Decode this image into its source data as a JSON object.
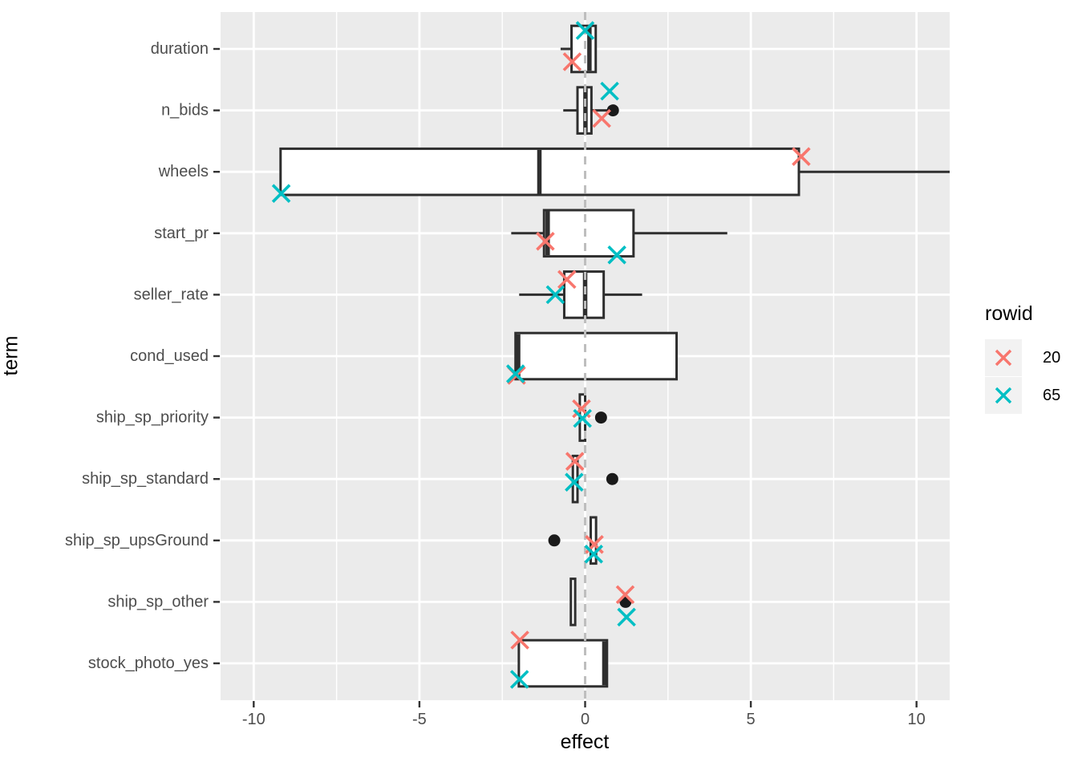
{
  "colors": {
    "rowid_20": "#F8766D",
    "rowid_65": "#00BFC4",
    "box_stroke": "#2E2E2E",
    "box_fill": "#FFFFFF",
    "outlier_dot": "#1A1A1A",
    "panel_background": "#EBEBEB",
    "gridline": "#FFFFFF",
    "reference_line": "#BEBEBE",
    "tick_label": "#4D4D4D",
    "tick_mark": "#333333"
  },
  "chart_data": {
    "type": "boxplot-horizontal",
    "title": "",
    "xlabel": "effect",
    "ylabel": "term",
    "xlim": [
      -11,
      11
    ],
    "x_ticks": [
      -10,
      -5,
      0,
      5,
      10
    ],
    "x_tick_labels": [
      "-10",
      "-5",
      "0",
      "5",
      "10"
    ],
    "x_minor_ticks": [
      -7.5,
      -2.5,
      2.5,
      7.5
    ],
    "grid": true,
    "reference_line": {
      "x": 0,
      "style": "dashed"
    },
    "legend": {
      "title": "rowid",
      "position": "right",
      "entries": [
        {
          "label": "20",
          "color_key": "rowid_20",
          "marker": "x"
        },
        {
          "label": "65",
          "color_key": "rowid_65",
          "marker": "x"
        }
      ]
    },
    "categories": [
      "duration",
      "n_bids",
      "wheels",
      "start_pr",
      "seller_rate",
      "cond_used",
      "ship_sp_priority",
      "ship_sp_standard",
      "ship_sp_upsGround",
      "ship_sp_other",
      "stock_photo_yes"
    ],
    "rows": [
      {
        "term": "duration",
        "box": {
          "q1": -0.41,
          "median": 0.13,
          "q3": 0.32,
          "whisker_low": -0.74,
          "whisker_high": null
        },
        "outliers": [],
        "points": [
          {
            "rowid": "20",
            "x": -0.39,
            "dy": 16
          },
          {
            "rowid": "65",
            "x": 0.0,
            "dy": -23
          }
        ]
      },
      {
        "term": "n_bids",
        "box": {
          "q1": -0.23,
          "median": 0.01,
          "q3": 0.19,
          "whisker_low": -0.66,
          "whisker_high": 0.7
        },
        "outliers": [
          0.84
        ],
        "points": [
          {
            "rowid": "20",
            "x": 0.5,
            "dy": 10
          },
          {
            "rowid": "65",
            "x": 0.74,
            "dy": -24
          }
        ]
      },
      {
        "term": "wheels",
        "box": {
          "q1": -9.19,
          "median": -1.38,
          "q3": 6.45,
          "whisker_low": null,
          "whisker_high": 11.0
        },
        "outliers": [],
        "points": [
          {
            "rowid": "20",
            "x": 6.52,
            "dy": -19
          },
          {
            "rowid": "65",
            "x": -9.17,
            "dy": 27
          }
        ]
      },
      {
        "term": "start_pr",
        "box": {
          "q1": -1.24,
          "median": -1.13,
          "q3": 1.46,
          "whisker_low": -2.23,
          "whisker_high": 4.29
        },
        "outliers": [],
        "points": [
          {
            "rowid": "20",
            "x": -1.2,
            "dy": 10
          },
          {
            "rowid": "65",
            "x": 0.96,
            "dy": 27
          }
        ]
      },
      {
        "term": "seller_rate",
        "box": {
          "q1": -0.63,
          "median": 0.0,
          "q3": 0.56,
          "whisker_low": -1.99,
          "whisker_high": 1.72
        },
        "outliers": [],
        "points": [
          {
            "rowid": "20",
            "x": -0.55,
            "dy": -19
          },
          {
            "rowid": "65",
            "x": -0.9,
            "dy": 0
          }
        ]
      },
      {
        "term": "cond_used",
        "box": {
          "q1": -2.1,
          "median": -2.02,
          "q3": 2.76,
          "whisker_low": null,
          "whisker_high": null
        },
        "outliers": [],
        "points": [
          {
            "rowid": "20",
            "x": -2.07,
            "dy": 24
          },
          {
            "rowid": "65",
            "x": -2.1,
            "dy": 22
          }
        ]
      },
      {
        "term": "ship_sp_priority",
        "box": {
          "q1": -0.16,
          "median": null,
          "q3": 0.0,
          "whisker_low": null,
          "whisker_high": null
        },
        "outliers": [
          0.48
        ],
        "points": [
          {
            "rowid": "20",
            "x": -0.11,
            "dy": -11
          },
          {
            "rowid": "65",
            "x": -0.08,
            "dy": 1
          }
        ]
      },
      {
        "term": "ship_sp_standard",
        "box": {
          "q1": -0.37,
          "median": null,
          "q3": -0.23,
          "whisker_low": null,
          "whisker_high": null
        },
        "outliers": [
          0.82
        ],
        "points": [
          {
            "rowid": "20",
            "x": -0.31,
            "dy": -22
          },
          {
            "rowid": "65",
            "x": -0.33,
            "dy": 4
          }
        ]
      },
      {
        "term": "ship_sp_upsGround",
        "box": {
          "q1": 0.17,
          "median": null,
          "q3": 0.33,
          "whisker_low": null,
          "whisker_high": null
        },
        "outliers": [
          -0.93
        ],
        "points": [
          {
            "rowid": "20",
            "x": 0.28,
            "dy": 5
          },
          {
            "rowid": "65",
            "x": 0.26,
            "dy": 17
          }
        ]
      },
      {
        "term": "ship_sp_other",
        "box": {
          "q1": -0.43,
          "median": null,
          "q3": -0.3,
          "whisker_low": null,
          "whisker_high": null
        },
        "outliers": [
          1.22
        ],
        "points": [
          {
            "rowid": "20",
            "x": 1.21,
            "dy": -9
          },
          {
            "rowid": "65",
            "x": 1.25,
            "dy": 19
          }
        ]
      },
      {
        "term": "stock_photo_yes",
        "box": {
          "q1": -2.0,
          "median": 0.58,
          "q3": 0.66,
          "whisker_low": null,
          "whisker_high": null
        },
        "outliers": [],
        "points": [
          {
            "rowid": "20",
            "x": -1.97,
            "dy": -29
          },
          {
            "rowid": "65",
            "x": -1.98,
            "dy": 20
          }
        ]
      }
    ]
  }
}
